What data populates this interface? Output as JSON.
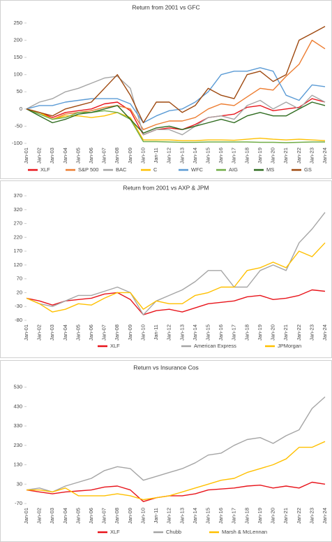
{
  "chart_data": [
    {
      "type": "line",
      "title": "Return from 2001 vs GFC",
      "categories": [
        "Jan-01",
        "Jan-02",
        "Jan-03",
        "Jan-04",
        "Jan-05",
        "Jan-06",
        "Jan-07",
        "Jan-08",
        "Jan-09",
        "Jan-10",
        "Jan-11",
        "Jan-12",
        "Jan-13",
        "Jan-14",
        "Jan-15",
        "Jan-16",
        "Jan-17",
        "Jan-18",
        "Jan-19",
        "Jan-20",
        "Jan-21",
        "Jan-22",
        "Jan-23",
        "Jan-24"
      ],
      "series": [
        {
          "name": "XLF",
          "color": "#e8141b",
          "values": [
            0,
            -10,
            -25,
            -10,
            -5,
            0,
            15,
            20,
            -5,
            -75,
            -60,
            -55,
            -60,
            -45,
            -25,
            -20,
            -15,
            5,
            10,
            -5,
            0,
            5,
            30,
            20
          ]
        },
        {
          "name": "S&P 500",
          "color": "#ed7d31",
          "values": [
            0,
            -10,
            -30,
            -15,
            -10,
            -5,
            5,
            10,
            0,
            -60,
            -45,
            -35,
            -35,
            -25,
            0,
            15,
            10,
            35,
            60,
            55,
            95,
            130,
            200,
            175
          ]
        },
        {
          "name": "BAC",
          "color": "#a5a5a5",
          "values": [
            0,
            20,
            30,
            50,
            60,
            75,
            90,
            95,
            60,
            -75,
            -60,
            -60,
            -75,
            -50,
            -25,
            -20,
            -30,
            10,
            25,
            0,
            20,
            0,
            40,
            20
          ]
        },
        {
          "name": "C",
          "color": "#ffc000",
          "values": [
            0,
            -10,
            -30,
            -20,
            -20,
            -25,
            -20,
            -10,
            -25,
            -90,
            -90,
            -90,
            -92,
            -92,
            -90,
            -90,
            -91,
            -88,
            -85,
            -88,
            -90,
            -88,
            -90,
            -92
          ]
        },
        {
          "name": "WFC",
          "color": "#5b9bd5",
          "values": [
            0,
            10,
            10,
            20,
            25,
            30,
            30,
            30,
            15,
            -40,
            -20,
            -5,
            0,
            20,
            50,
            100,
            110,
            110,
            120,
            110,
            40,
            25,
            70,
            65
          ]
        },
        {
          "name": "AIG",
          "color": "#70ad47",
          "values": [
            0,
            -15,
            -30,
            -25,
            -10,
            -10,
            -5,
            -10,
            -30,
            -95,
            -95,
            -96,
            -97,
            -97,
            -96,
            -96,
            -96,
            -96,
            -97,
            -97,
            -98,
            -97,
            -96,
            -96
          ]
        },
        {
          "name": "MS",
          "color": "#2e6b1f",
          "values": [
            0,
            -20,
            -40,
            -30,
            -15,
            -10,
            0,
            10,
            -30,
            -70,
            -55,
            -50,
            -60,
            -50,
            -40,
            -30,
            -40,
            -20,
            -10,
            -20,
            -20,
            0,
            20,
            10
          ]
        },
        {
          "name": "GS",
          "color": "#9e480e",
          "values": [
            0,
            -10,
            -20,
            0,
            10,
            20,
            60,
            100,
            40,
            -40,
            20,
            20,
            -10,
            10,
            60,
            40,
            30,
            100,
            110,
            80,
            100,
            200,
            220,
            240
          ]
        }
      ],
      "ylim": [
        -100,
        260
      ],
      "yticks": [
        -100,
        -50,
        0,
        50,
        100,
        150,
        200,
        250
      ]
    },
    {
      "type": "line",
      "title": "Return from 2001 vs AXP & JPM",
      "categories": [
        "Jan-01",
        "Jan-02",
        "Jan-03",
        "Jan-04",
        "Jan-05",
        "Jan-06",
        "Jan-07",
        "Jan-08",
        "Jan-09",
        "Jan-10",
        "Jan-11",
        "Jan-12",
        "Jan-13",
        "Jan-14",
        "Jan-15",
        "Jan-16",
        "Jan-17",
        "Jan-18",
        "Jan-19",
        "Jan-20",
        "Jan-21",
        "Jan-22",
        "Jan-23",
        "Jan-24"
      ],
      "series": [
        {
          "name": "XLF",
          "color": "#e8141b",
          "values": [
            0,
            -10,
            -25,
            -10,
            -5,
            0,
            15,
            20,
            -5,
            -60,
            -45,
            -40,
            -50,
            -35,
            -20,
            -15,
            -10,
            5,
            10,
            -5,
            0,
            10,
            30,
            25
          ]
        },
        {
          "name": "American Express",
          "color": "#a5a5a5",
          "values": [
            0,
            -20,
            -30,
            -10,
            10,
            10,
            25,
            40,
            20,
            -60,
            -10,
            10,
            30,
            60,
            100,
            100,
            40,
            40,
            100,
            120,
            100,
            200,
            250,
            310
          ]
        },
        {
          "name": "JPMorgan",
          "color": "#ffc000",
          "values": [
            0,
            -20,
            -50,
            -40,
            -20,
            -25,
            0,
            20,
            20,
            -40,
            -10,
            -20,
            -20,
            10,
            20,
            40,
            40,
            100,
            110,
            130,
            110,
            170,
            150,
            200
          ]
        }
      ],
      "ylim": [
        -80,
        370
      ],
      "yticks": [
        -80,
        -30,
        20,
        70,
        120,
        170,
        220,
        270,
        320,
        370
      ]
    },
    {
      "type": "line",
      "title": "Return vs Insurance Cos",
      "categories": [
        "Jan-01",
        "Jan-02",
        "Jan-03",
        "Jan-04",
        "Jan-05",
        "Jan-06",
        "Jan-07",
        "Jan-08",
        "Jan-09",
        "Jan-10",
        "Jan-11",
        "Jan-12",
        "Jan-13",
        "Jan-14",
        "Jan-15",
        "Jan-16",
        "Jan-17",
        "Jan-18",
        "Jan-19",
        "Jan-20",
        "Jan-21",
        "Jan-22",
        "Jan-23",
        "Jan-24"
      ],
      "series": [
        {
          "name": "XLF",
          "color": "#e8141b",
          "values": [
            0,
            -10,
            -20,
            -10,
            -5,
            0,
            15,
            20,
            0,
            -60,
            -40,
            -30,
            -30,
            -20,
            0,
            5,
            10,
            20,
            25,
            10,
            20,
            10,
            40,
            30
          ]
        },
        {
          "name": "Chubb",
          "color": "#a5a5a5",
          "values": [
            0,
            10,
            -10,
            20,
            40,
            60,
            100,
            120,
            110,
            50,
            70,
            90,
            110,
            140,
            180,
            190,
            230,
            260,
            270,
            240,
            280,
            310,
            420,
            480
          ]
        },
        {
          "name": "Marsh & McLennan",
          "color": "#ffc000",
          "values": [
            0,
            0,
            -10,
            10,
            -30,
            -30,
            -30,
            -20,
            -30,
            -50,
            -40,
            -30,
            -10,
            10,
            30,
            50,
            60,
            90,
            110,
            130,
            160,
            220,
            220,
            250
          ]
        }
      ],
      "ylim": [
        -70,
        590
      ],
      "yticks": [
        -70,
        30,
        130,
        230,
        330,
        430,
        530
      ]
    }
  ]
}
